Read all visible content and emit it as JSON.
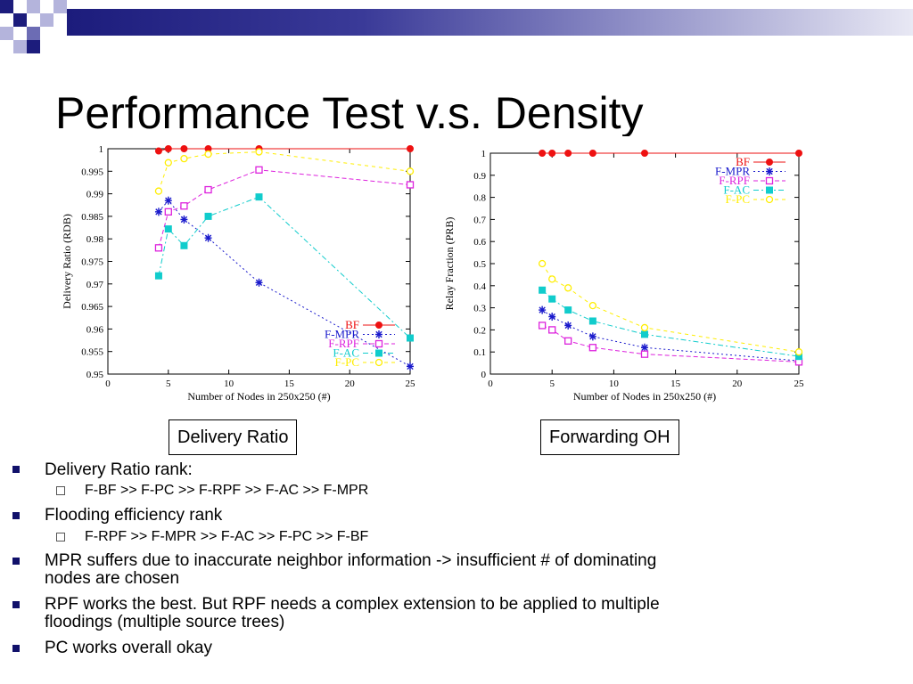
{
  "slide": {
    "title": "Performance Test v.s. Density"
  },
  "theme": {
    "dark_blue": "#1c1c7c",
    "mid_blue": "#6c6cb4",
    "light_blue": "#b4b4dc",
    "bullet_color": "#10106a"
  },
  "captions": {
    "left": "Delivery Ratio",
    "right": "Forwarding OH"
  },
  "bullets": [
    {
      "level": 1,
      "text": "Delivery Ratio rank:"
    },
    {
      "level": 2,
      "text": "F-BF >> F-PC >> F-RPF >> F-AC >> F-MPR"
    },
    {
      "level": 1,
      "text": "Flooding efficiency rank"
    },
    {
      "level": 2,
      "text": "F-RPF >> F-MPR >> F-AC >> F-PC >> F-BF"
    },
    {
      "level": 1,
      "text": "MPR suffers due to inaccurate neighbor information -> insufficient # of dominating",
      "text2": "nodes are chosen"
    },
    {
      "level": 1,
      "text": "RPF works the best. But RPF needs a complex extension to be applied to multiple",
      "text2": "floodings (multiple source trees)"
    },
    {
      "level": 1,
      "text": "PC works overall okay"
    }
  ],
  "chart_data": [
    {
      "type": "line",
      "xlabel": "Number of Nodes in 250x250 (#)",
      "ylabel": "Delivery Ratio (RDB)",
      "xlim": [
        0,
        25
      ],
      "ylim": [
        0.95,
        1.0
      ],
      "xticks": [
        0,
        5,
        10,
        15,
        20,
        25
      ],
      "xtick_labels": [
        "0",
        "5",
        "10",
        "15",
        "20",
        "25"
      ],
      "yticks": [
        0.95,
        0.955,
        0.96,
        0.965,
        0.97,
        0.975,
        0.98,
        0.985,
        0.99,
        0.995,
        1.0
      ],
      "ytick_labels": [
        "0.95",
        "0.955",
        "0.96",
        "0.965",
        "0.97",
        "0.975",
        "0.98",
        "0.985",
        "0.99",
        "0.995",
        "1"
      ],
      "legend_position": "bottom-right",
      "series": [
        {
          "name": "BF",
          "color": "#ee1111",
          "marker": "dot",
          "dash": "",
          "x": [
            4.2,
            5,
            6.3,
            8.3,
            12.5,
            25
          ],
          "y": [
            0.9995,
            1.0,
            1.0,
            1.0,
            1.0,
            1.0
          ]
        },
        {
          "name": "F-MPR",
          "color": "#1a1acc",
          "marker": "star",
          "dash": "2,3",
          "x": [
            4.2,
            5,
            6.3,
            8.3,
            12.5,
            25
          ],
          "y": [
            0.986,
            0.9885,
            0.9843,
            0.9802,
            0.9703,
            0.9517
          ]
        },
        {
          "name": "F-RPF",
          "color": "#dd22dd",
          "marker": "square",
          "dash": "5,3",
          "x": [
            4.2,
            5,
            6.3,
            8.3,
            12.5,
            25
          ],
          "y": [
            0.978,
            0.986,
            0.9873,
            0.9909,
            0.9953,
            0.992
          ]
        },
        {
          "name": "F-AC",
          "color": "#11cccc",
          "marker": "filled-square",
          "dash": "6,3,2,3",
          "x": [
            4.2,
            5,
            6.3,
            8.3,
            12.5,
            25
          ],
          "y": [
            0.9718,
            0.9822,
            0.9785,
            0.985,
            0.9893,
            0.958
          ]
        },
        {
          "name": "F-PC",
          "color": "#ffee00",
          "marker": "circle",
          "dash": "4,4",
          "x": [
            4.2,
            5,
            6.3,
            8.3,
            12.5,
            25
          ],
          "y": [
            0.9906,
            0.9969,
            0.9978,
            0.9988,
            0.9993,
            0.995
          ]
        }
      ]
    },
    {
      "type": "line",
      "xlabel": "Number of Nodes in 250x250 (#)",
      "ylabel": "Relay Fraction (PRB)",
      "xlim": [
        0,
        25
      ],
      "ylim": [
        0,
        1
      ],
      "xticks": [
        0,
        5,
        10,
        15,
        20,
        25
      ],
      "xtick_labels": [
        "0",
        "5",
        "10",
        "15",
        "20",
        "25"
      ],
      "yticks": [
        0,
        0.1,
        0.2,
        0.3,
        0.4,
        0.5,
        0.6,
        0.7,
        0.8,
        0.9,
        1.0
      ],
      "ytick_labels": [
        "0",
        "0.1",
        "0.2",
        "0.3",
        "0.4",
        "0.5",
        "0.6",
        "0.7",
        "0.8",
        "0.9",
        "1"
      ],
      "legend_position": "top-right",
      "series": [
        {
          "name": "BF",
          "color": "#ee1111",
          "marker": "dot",
          "dash": "",
          "x": [
            4.2,
            5,
            6.3,
            8.3,
            12.5,
            25
          ],
          "y": [
            1.0,
            1.0,
            1.0,
            1.0,
            1.0,
            1.0
          ]
        },
        {
          "name": "F-MPR",
          "color": "#1a1acc",
          "marker": "star",
          "dash": "2,3",
          "x": [
            4.2,
            5,
            6.3,
            8.3,
            12.5,
            25
          ],
          "y": [
            0.29,
            0.26,
            0.22,
            0.17,
            0.12,
            0.06
          ]
        },
        {
          "name": "F-RPF",
          "color": "#dd22dd",
          "marker": "square",
          "dash": "5,3",
          "x": [
            4.2,
            5,
            6.3,
            8.3,
            12.5,
            25
          ],
          "y": [
            0.22,
            0.2,
            0.15,
            0.12,
            0.09,
            0.055
          ]
        },
        {
          "name": "F-AC",
          "color": "#11cccc",
          "marker": "filled-square",
          "dash": "6,3,2,3",
          "x": [
            4.2,
            5,
            6.3,
            8.3,
            12.5,
            25
          ],
          "y": [
            0.38,
            0.34,
            0.29,
            0.24,
            0.18,
            0.08
          ]
        },
        {
          "name": "F-PC",
          "color": "#ffee00",
          "marker": "circle",
          "dash": "4,4",
          "x": [
            4.2,
            5,
            6.3,
            8.3,
            12.5,
            25
          ],
          "y": [
            0.5,
            0.43,
            0.39,
            0.31,
            0.21,
            0.1
          ]
        }
      ]
    }
  ]
}
